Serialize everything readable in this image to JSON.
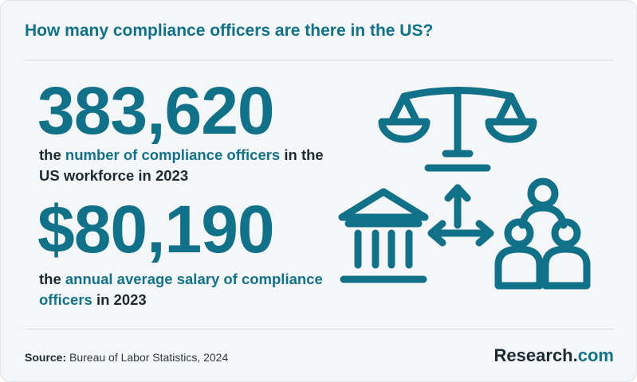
{
  "title": "How many compliance officers are there in the US?",
  "stat1": {
    "value": "383,620",
    "pre": "the ",
    "highlight": "number of compliance officers",
    "post": " in the US workforce in 2023"
  },
  "stat2": {
    "value": "$80,190",
    "pre": "the ",
    "highlight": "annual average salary of compliance officers",
    "post": " in 2023"
  },
  "footer": {
    "source_label": "Source:",
    "source_text": " Bureau of Labor Statistics, 2024"
  },
  "brand": {
    "name": "Research",
    "dot": ".",
    "tld": "com"
  },
  "icons": {
    "scales": "scales-of-justice-icon",
    "building": "institution-building-icon",
    "arrows": "two-way-arrows-icon",
    "people": "people-group-icon"
  },
  "colors": {
    "accent": "#117189",
    "text": "#1c2b33",
    "background": "#f5f6f7"
  }
}
